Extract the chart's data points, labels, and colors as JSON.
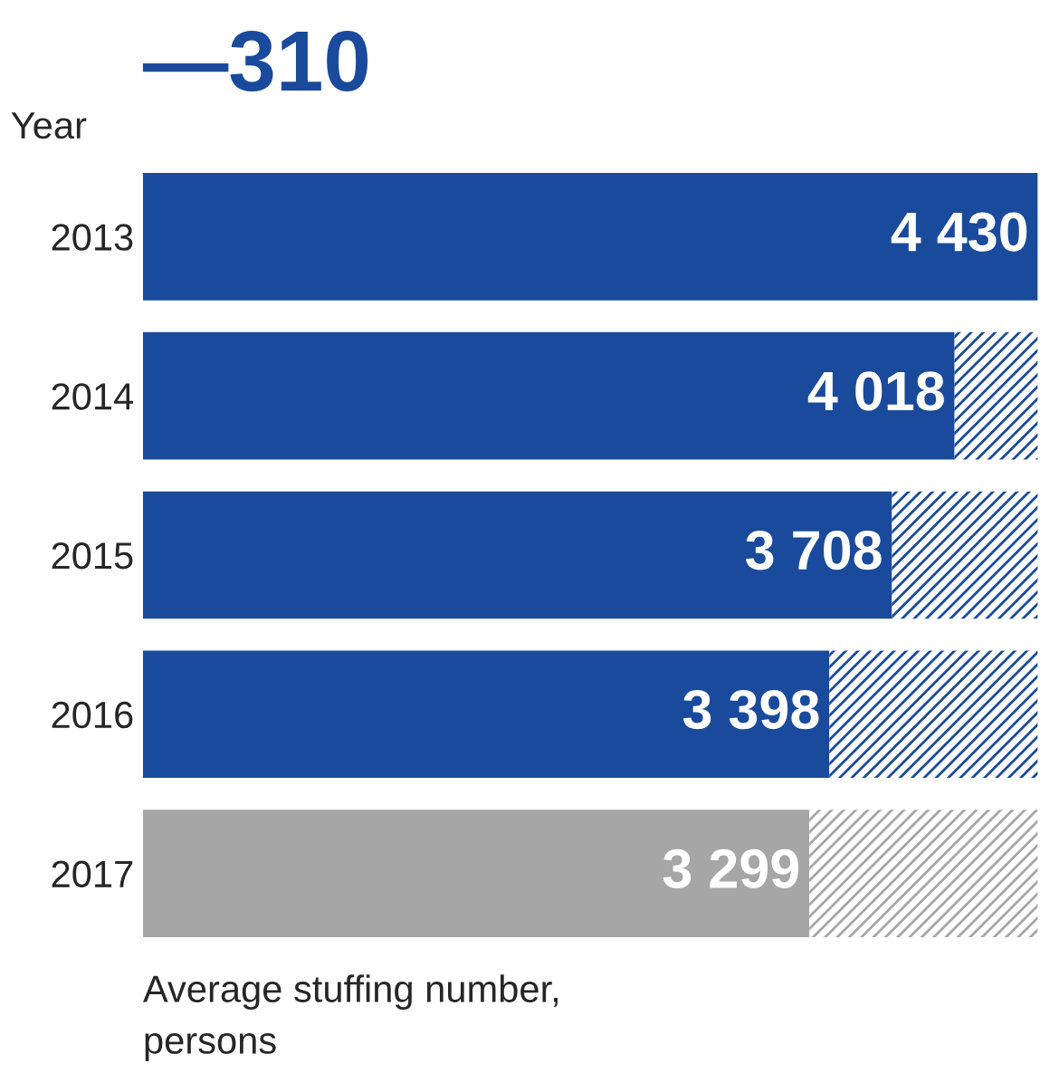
{
  "chart_data": {
    "type": "bar",
    "orientation": "horizontal",
    "stacked": true,
    "title": "—310",
    "ylabel": "Year",
    "xlabel": "Average stuffing number,\npersons",
    "categories": [
      "2013",
      "2014",
      "2015",
      "2016",
      "2017"
    ],
    "xlim": [
      0,
      4430
    ],
    "tick_labels": "y",
    "legend": false,
    "grid": false,
    "series": [
      {
        "colors": [
          "#1a4a9c",
          "#1a4a9c",
          "#1a4a9c",
          "#1a4a9c",
          "#a6a6a6"
        ],
        "values": [
          4430,
          4018,
          3708,
          3398,
          3299
        ],
        "value_labels": [
          "4 430",
          "4 018",
          "3 708",
          "3 398",
          "3 299"
        ]
      },
      {
        "colors": [
          "#1a4a9c",
          "#1a4a9c",
          "#1a4a9c",
          "#1a4a9c",
          "#a6a6a6"
        ],
        "values": [
          0,
          412,
          722,
          1032,
          1131
        ]
      }
    ]
  }
}
